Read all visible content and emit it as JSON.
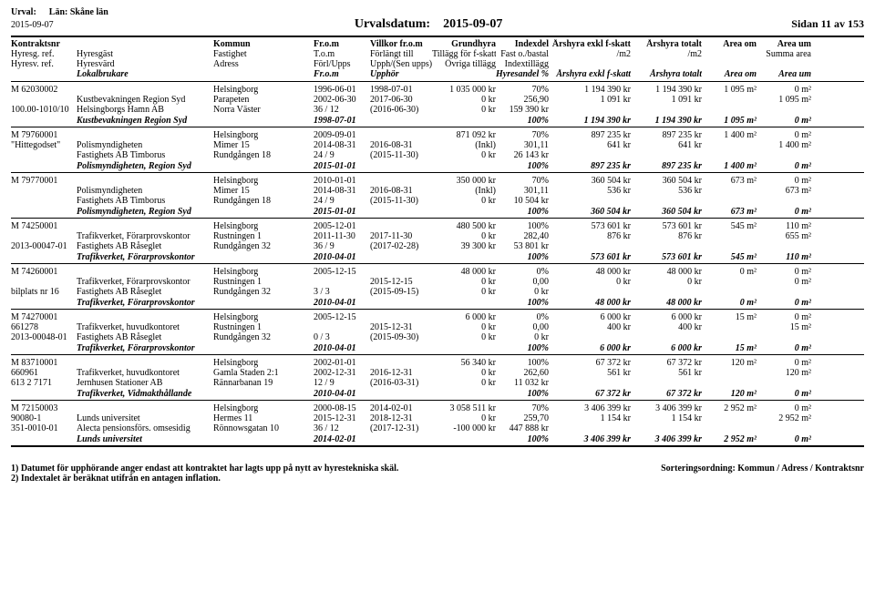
{
  "header": {
    "urval_lbl": "Urval:",
    "lan": "Län: Skåne län",
    "date": "2015-09-07",
    "urvalsdatum_lbl": "Urvalsdatum:",
    "urvalsdatum": "2015-09-07",
    "page": "Sidan 11 av 153"
  },
  "colhdr": {
    "r1": [
      "Kontraktsnr",
      "",
      "Kommun",
      "Fr.o.m",
      "Villkor fr.o.m",
      "Grundhyra",
      "Indexdel",
      "Årshyra exkl f-skatt",
      "Årshyra totalt",
      "Area om",
      "Area um"
    ],
    "r2": [
      "Hyresg. ref.",
      "Hyresgäst",
      "Fastighet",
      "T.o.m",
      "Förlängt till",
      "Tillägg för f-skatt",
      "Fast o./bastal",
      "/m2",
      "/m2",
      "",
      "Summa area"
    ],
    "r3": [
      "Hyresv. ref.",
      "Hyresvärd",
      "Adress",
      "Förl/Upps",
      "Upph/(Sen upps)",
      "Övriga tillägg",
      "Indextillägg",
      "",
      "",
      "",
      ""
    ],
    "r4": [
      "",
      "Lokalbrukare",
      "",
      "Fr.o.m",
      "Upphör",
      "",
      "Hyresandel %",
      "Årshyra exkl f-skatt",
      "Årshyra totalt",
      "Area om",
      "Area um"
    ]
  },
  "blocks": [
    {
      "rows": [
        [
          "M 62030002",
          "",
          "Helsingborg",
          "1996-06-01",
          "1998-07-01",
          "1 035 000 kr",
          "70%",
          "1 194 390 kr",
          "1 194 390 kr",
          "1 095 m²",
          "0 m²"
        ],
        [
          "",
          "Kustbevakningen Region Syd",
          "Parapeten",
          "2002-06-30",
          "2017-06-30",
          "0 kr",
          "256,90",
          "1 091 kr",
          "1 091 kr",
          "",
          "1 095 m²"
        ],
        [
          "100.00-1010/10",
          "Helsingborgs Hamn AB",
          "Norra Väster",
          "36 / 12",
          "(2016-06-30)",
          "0 kr",
          "159 390 kr",
          "",
          "",
          "",
          ""
        ]
      ],
      "sum": [
        "",
        "Kustbevakningen Region Syd",
        "",
        "1998-07-01",
        "",
        "",
        "100%",
        "1 194 390 kr",
        "1 194 390 kr",
        "1 095 m²",
        "0 m²"
      ]
    },
    {
      "rows": [
        [
          "M 79760001",
          "",
          "Helsingborg",
          "2009-09-01",
          "",
          "871 092 kr",
          "70%",
          "897 235 kr",
          "897 235 kr",
          "1 400 m²",
          "0 m²"
        ],
        [
          "\"Hittegodset\"",
          "Polismyndigheten",
          "Mimer 15",
          "2014-08-31",
          "2016-08-31",
          "(Inkl)",
          "301,11",
          "641 kr",
          "641 kr",
          "",
          "1 400 m²"
        ],
        [
          "",
          "Fastighets AB Timborus",
          "Rundgången 18",
          "24 / 9",
          "(2015-11-30)",
          "0 kr",
          "26 143 kr",
          "",
          "",
          "",
          ""
        ]
      ],
      "sum": [
        "",
        "Polismyndigheten, Region Syd",
        "",
        "2015-01-01",
        "",
        "",
        "100%",
        "897 235 kr",
        "897 235 kr",
        "1 400 m²",
        "0 m²"
      ]
    },
    {
      "rows": [
        [
          "M 79770001",
          "",
          "Helsingborg",
          "2010-01-01",
          "",
          "350 000 kr",
          "70%",
          "360 504 kr",
          "360 504 kr",
          "673 m²",
          "0 m²"
        ],
        [
          "",
          "Polismyndigheten",
          "Mimer 15",
          "2014-08-31",
          "2016-08-31",
          "(Inkl)",
          "301,11",
          "536 kr",
          "536 kr",
          "",
          "673 m²"
        ],
        [
          "",
          "Fastighets AB Timborus",
          "Rundgången 18",
          "24 / 9",
          "(2015-11-30)",
          "0 kr",
          "10 504 kr",
          "",
          "",
          "",
          ""
        ]
      ],
      "sum": [
        "",
        "Polismyndigheten, Region Syd",
        "",
        "2015-01-01",
        "",
        "",
        "100%",
        "360 504 kr",
        "360 504 kr",
        "673 m²",
        "0 m²"
      ]
    },
    {
      "rows": [
        [
          "M 74250001",
          "",
          "Helsingborg",
          "2005-12-01",
          "",
          "480 500 kr",
          "100%",
          "573 601 kr",
          "573 601 kr",
          "545 m²",
          "110 m²"
        ],
        [
          "",
          "Trafikverket, Förarprovskontor",
          "Rustningen 1",
          "2011-11-30",
          "2017-11-30",
          "0 kr",
          "282,40",
          "876 kr",
          "876 kr",
          "",
          "655 m²"
        ],
        [
          "2013-00047-01",
          "Fastighets AB Råseglet",
          "Rundgången 32",
          "36 / 9",
          "(2017-02-28)",
          "39 300 kr",
          "53 801 kr",
          "",
          "",
          "",
          ""
        ]
      ],
      "sum": [
        "",
        "Trafikverket, Förarprovskontor",
        "",
        "2010-04-01",
        "",
        "",
        "100%",
        "573 601 kr",
        "573 601 kr",
        "545 m²",
        "110 m²"
      ]
    },
    {
      "rows": [
        [
          "M 74260001",
          "",
          "Helsingborg",
          "2005-12-15",
          "",
          "48 000 kr",
          "0%",
          "48 000 kr",
          "48 000 kr",
          "0 m²",
          "0 m²"
        ],
        [
          "",
          "Trafikverket, Förarprovskontor",
          "Rustningen 1",
          "",
          "2015-12-15",
          "0 kr",
          "0,00",
          "0 kr",
          "0 kr",
          "",
          "0 m²"
        ],
        [
          "bilplats nr 16",
          "Fastighets AB Råseglet",
          "Rundgången 32",
          "3 / 3",
          "(2015-09-15)",
          "0 kr",
          "0 kr",
          "",
          "",
          "",
          ""
        ]
      ],
      "sum": [
        "",
        "Trafikverket, Förarprovskontor",
        "",
        "2010-04-01",
        "",
        "",
        "100%",
        "48 000 kr",
        "48 000 kr",
        "0 m²",
        "0 m²"
      ]
    },
    {
      "rows": [
        [
          "M 74270001",
          "",
          "Helsingborg",
          "2005-12-15",
          "",
          "6 000 kr",
          "0%",
          "6 000 kr",
          "6 000 kr",
          "15 m²",
          "0 m²"
        ],
        [
          "661278",
          "Trafikverket, huvudkontoret",
          "Rustningen 1",
          "",
          "2015-12-31",
          "0 kr",
          "0,00",
          "400 kr",
          "400 kr",
          "",
          "15 m²"
        ],
        [
          "2013-00048-01",
          "Fastighets AB Råseglet",
          "Rundgången 32",
          "0 / 3",
          "(2015-09-30)",
          "0 kr",
          "0 kr",
          "",
          "",
          "",
          ""
        ]
      ],
      "sum": [
        "",
        "Trafikverket, Förarprovskontor",
        "",
        "2010-04-01",
        "",
        "",
        "100%",
        "6 000 kr",
        "6 000 kr",
        "15 m²",
        "0 m²"
      ]
    },
    {
      "rows": [
        [
          "M 83710001",
          "",
          "Helsingborg",
          "2002-01-01",
          "",
          "56 340 kr",
          "100%",
          "67 372 kr",
          "67 372 kr",
          "120 m²",
          "0 m²"
        ],
        [
          "660961",
          "Trafikverket, huvudkontoret",
          "Gamla Staden 2:1",
          "2002-12-31",
          "2016-12-31",
          "0 kr",
          "262,60",
          "561 kr",
          "561 kr",
          "",
          "120 m²"
        ],
        [
          "613 2 7171",
          "Jernhusen Stationer AB",
          "Rännarbanan 19",
          "12 / 9",
          "(2016-03-31)",
          "0 kr",
          "11 032 kr",
          "",
          "",
          "",
          ""
        ]
      ],
      "sum": [
        "",
        "Trafikverket, Vidmakthållande",
        "",
        "2010-04-01",
        "",
        "",
        "100%",
        "67 372 kr",
        "67 372 kr",
        "120 m²",
        "0 m²"
      ]
    },
    {
      "rows": [
        [
          "M 72150003",
          "",
          "Helsingborg",
          "2000-08-15",
          "2014-02-01",
          "3 058 511 kr",
          "70%",
          "3 406 399 kr",
          "3 406 399 kr",
          "2 952 m²",
          "0 m²"
        ],
        [
          "90080-1",
          "Lunds universitet",
          "Hermes 11",
          "2015-12-31",
          "2018-12-31",
          "0 kr",
          "259,70",
          "1 154 kr",
          "1 154 kr",
          "",
          "2 952 m²"
        ],
        [
          "351-0010-01",
          "Alecta pensionsförs. omsesidig",
          "Rönnowsgatan 10",
          "36 / 12",
          "(2017-12-31)",
          "-100 000 kr",
          "447 888 kr",
          "",
          "",
          "",
          ""
        ]
      ],
      "sum": [
        "",
        "Lunds universitet",
        "",
        "2014-02-01",
        "",
        "",
        "100%",
        "3 406 399 kr",
        "3 406 399 kr",
        "2 952 m²",
        "0 m²"
      ],
      "last": true
    }
  ],
  "footer": {
    "l1": "1) Datumet för upphörande anger endast att kontraktet har lagts upp på nytt av hyrestekniska skäl.",
    "l2": "2) Indextalet är beräknat utifrån en antagen inflation.",
    "r": "Sorteringsordning: Kommun / Adress / Kontraktsnr"
  }
}
